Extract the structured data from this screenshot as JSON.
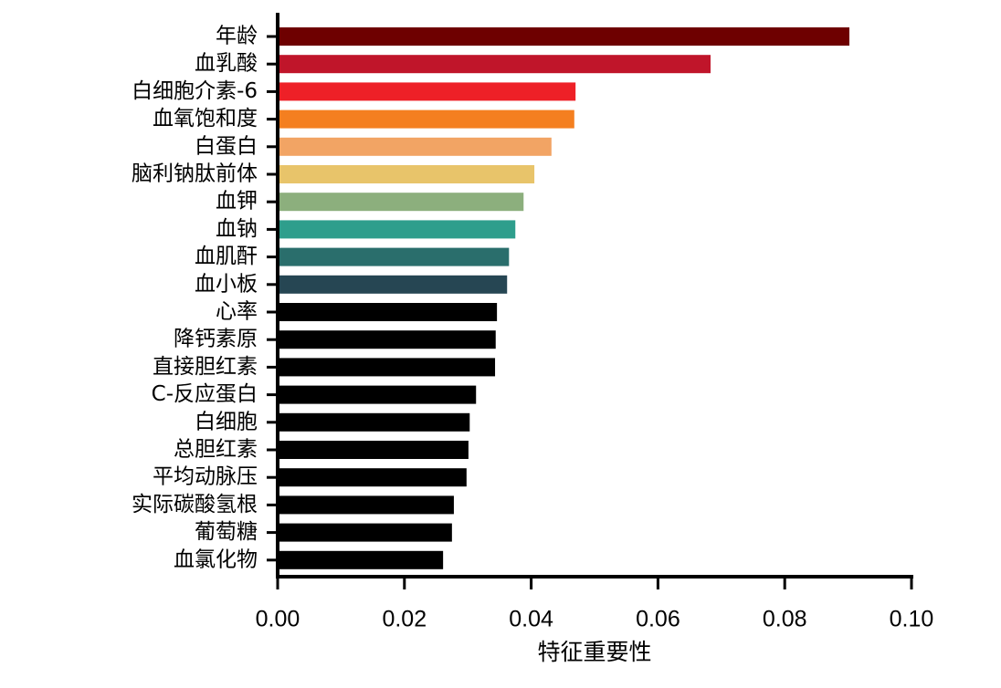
{
  "chart_data": {
    "type": "barh",
    "x_label": "特征重要性",
    "categories": [
      "年龄",
      "血乳酸",
      "白细胞介素-6",
      "血氧饱和度",
      "白蛋白",
      "脑利钠肽前体",
      "血钾",
      "血钠",
      "血肌酐",
      "血小板",
      "心率",
      "降钙素原",
      "直接胆红素",
      "C-反应蛋白",
      "白细胞",
      "总胆红素",
      "平均动脉压",
      "实际碳酸氢根",
      "葡萄糖",
      "血氯化物"
    ],
    "values": [
      0.0902,
      0.0683,
      0.047,
      0.0468,
      0.0432,
      0.0405,
      0.0388,
      0.0375,
      0.0365,
      0.0362,
      0.0346,
      0.0344,
      0.0343,
      0.0313,
      0.0303,
      0.0301,
      0.0298,
      0.0278,
      0.0275,
      0.0261
    ],
    "colors": [
      "#6e0000",
      "#c0152a",
      "#ee2027",
      "#f47f20",
      "#f2a464",
      "#e8c46a",
      "#8caf7d",
      "#2e9e8c",
      "#2a6e6c",
      "#264653",
      "#000000",
      "#000000",
      "#000000",
      "#000000",
      "#000000",
      "#000000",
      "#000000",
      "#000000",
      "#000000",
      "#000000"
    ],
    "xlim": [
      0,
      0.1
    ],
    "xticks": [
      {
        "value": 0,
        "label": "0.00"
      },
      {
        "value": 0.02,
        "label": "0.02"
      },
      {
        "value": 0.04,
        "label": "0.04"
      },
      {
        "value": 0.06,
        "label": "0.06"
      },
      {
        "value": 0.08,
        "label": "0.08"
      },
      {
        "value": 0.1,
        "label": "0.10"
      }
    ]
  }
}
